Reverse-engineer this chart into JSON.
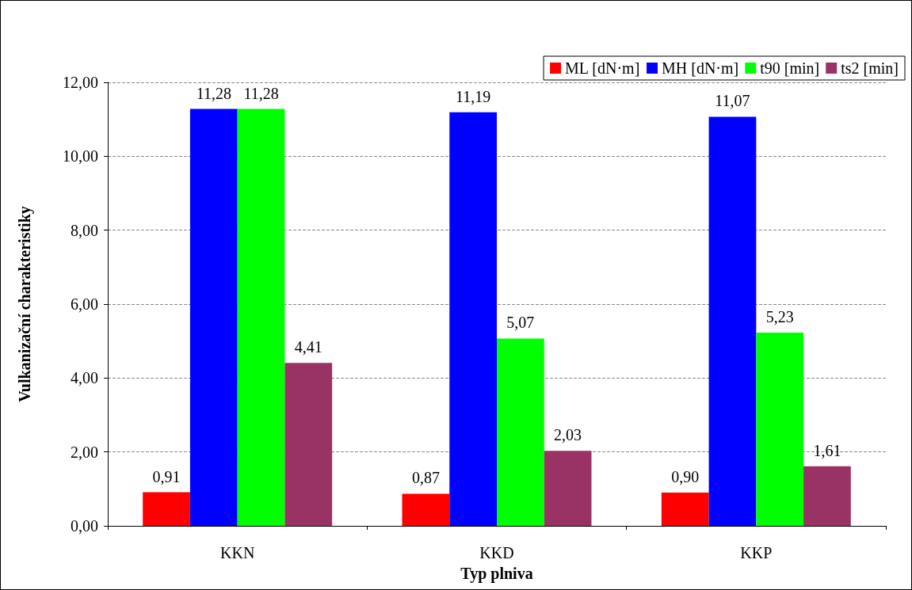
{
  "chart_data": {
    "type": "bar",
    "xlabel": "Typ plniva",
    "ylabel": "Vulkanizační charakteristiky",
    "categories": [
      "KKN",
      "KKD",
      "KKP"
    ],
    "series": [
      {
        "name": "ML [dN·m]",
        "color": "#ff0000",
        "values": [
          0.91,
          0.87,
          0.9
        ],
        "value_labels": [
          "0,91",
          "0,87",
          "0,90"
        ]
      },
      {
        "name": "MH [dN·m]",
        "color": "#0000ff",
        "values": [
          11.28,
          11.19,
          11.07
        ],
        "value_labels": [
          "11,28",
          "11,19",
          "11,07"
        ]
      },
      {
        "name": "t90 [min]",
        "color": "#00ff00",
        "values": [
          11.28,
          5.07,
          5.23
        ],
        "value_labels": [
          "11,28",
          "5,07",
          "5,23"
        ]
      },
      {
        "name": "ts2 [min]",
        "color": "#993366",
        "values": [
          4.41,
          2.03,
          1.61
        ],
        "value_labels": [
          "4,41",
          "2,03",
          "1,61"
        ]
      }
    ],
    "ylim": [
      0,
      12
    ],
    "yticks": [
      {
        "value": 0,
        "label": "0,00"
      },
      {
        "value": 2,
        "label": "2,00"
      },
      {
        "value": 4,
        "label": "4,00"
      },
      {
        "value": 6,
        "label": "6,00"
      },
      {
        "value": 8,
        "label": "8,00"
      },
      {
        "value": 10,
        "label": "10,00"
      },
      {
        "value": 12,
        "label": "12,00"
      }
    ],
    "grid": "y",
    "legend": "top right"
  }
}
